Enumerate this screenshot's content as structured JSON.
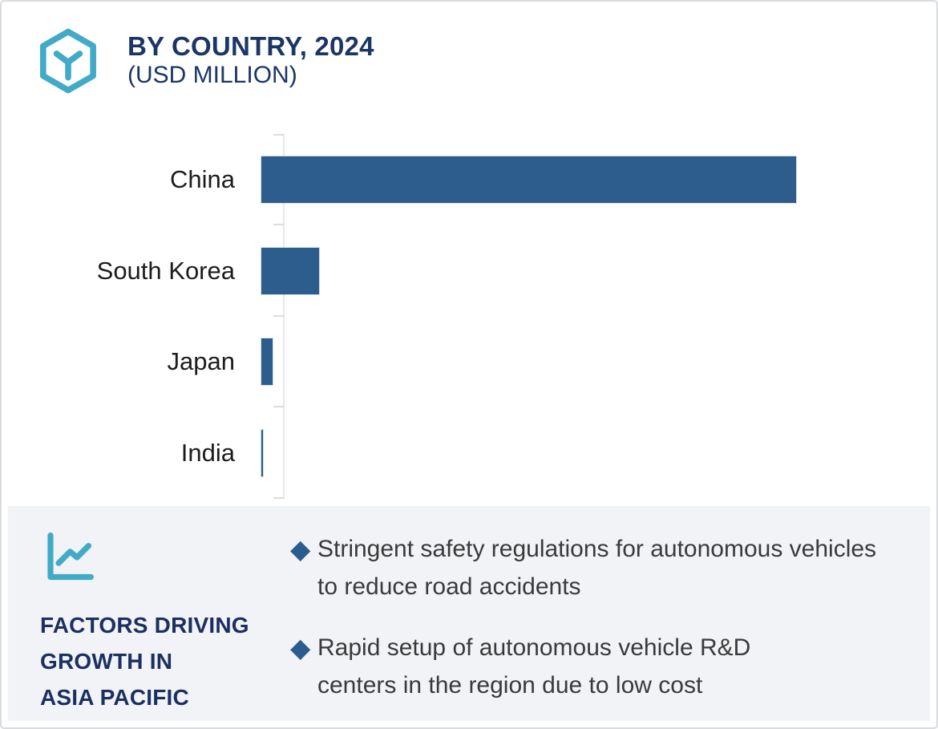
{
  "header": {
    "icon": "hexagon-box-icon",
    "title": "BY COUNTRY, 2024",
    "subtitle": "(USD MILLION)"
  },
  "chart_data": {
    "type": "bar",
    "orientation": "horizontal",
    "title": "BY COUNTRY, 2024 (USD MILLION)",
    "categories": [
      "China",
      "South Korea",
      "Japan",
      "India"
    ],
    "values": [
      100,
      10.8,
      2.1,
      0.3
    ],
    "value_scale": "estimated percent of longest bar; no numeric axis labels shown",
    "xlabel": "",
    "ylabel": "",
    "gridlines": false,
    "legend": null,
    "bar_color": "#2d5d8c"
  },
  "factors_panel": {
    "icon": "line-chart-icon",
    "heading_lines": [
      "FACTORS DRIVING",
      "GROWTH IN",
      "ASIA PACIFIC"
    ],
    "bullet_marker": "◆",
    "bullets": [
      "Stringent safety regulations for autonomous vehicles to reduce road accidents",
      "Rapid setup of autonomous vehicle R&D centers in the region due to low cost"
    ]
  },
  "colors": {
    "accent_teal": "#41aac7",
    "navy": "#1b3665",
    "bar_blue": "#2d5d8c",
    "panel_gray": "#f2f3f7",
    "body_text": "#3a3a3a"
  }
}
